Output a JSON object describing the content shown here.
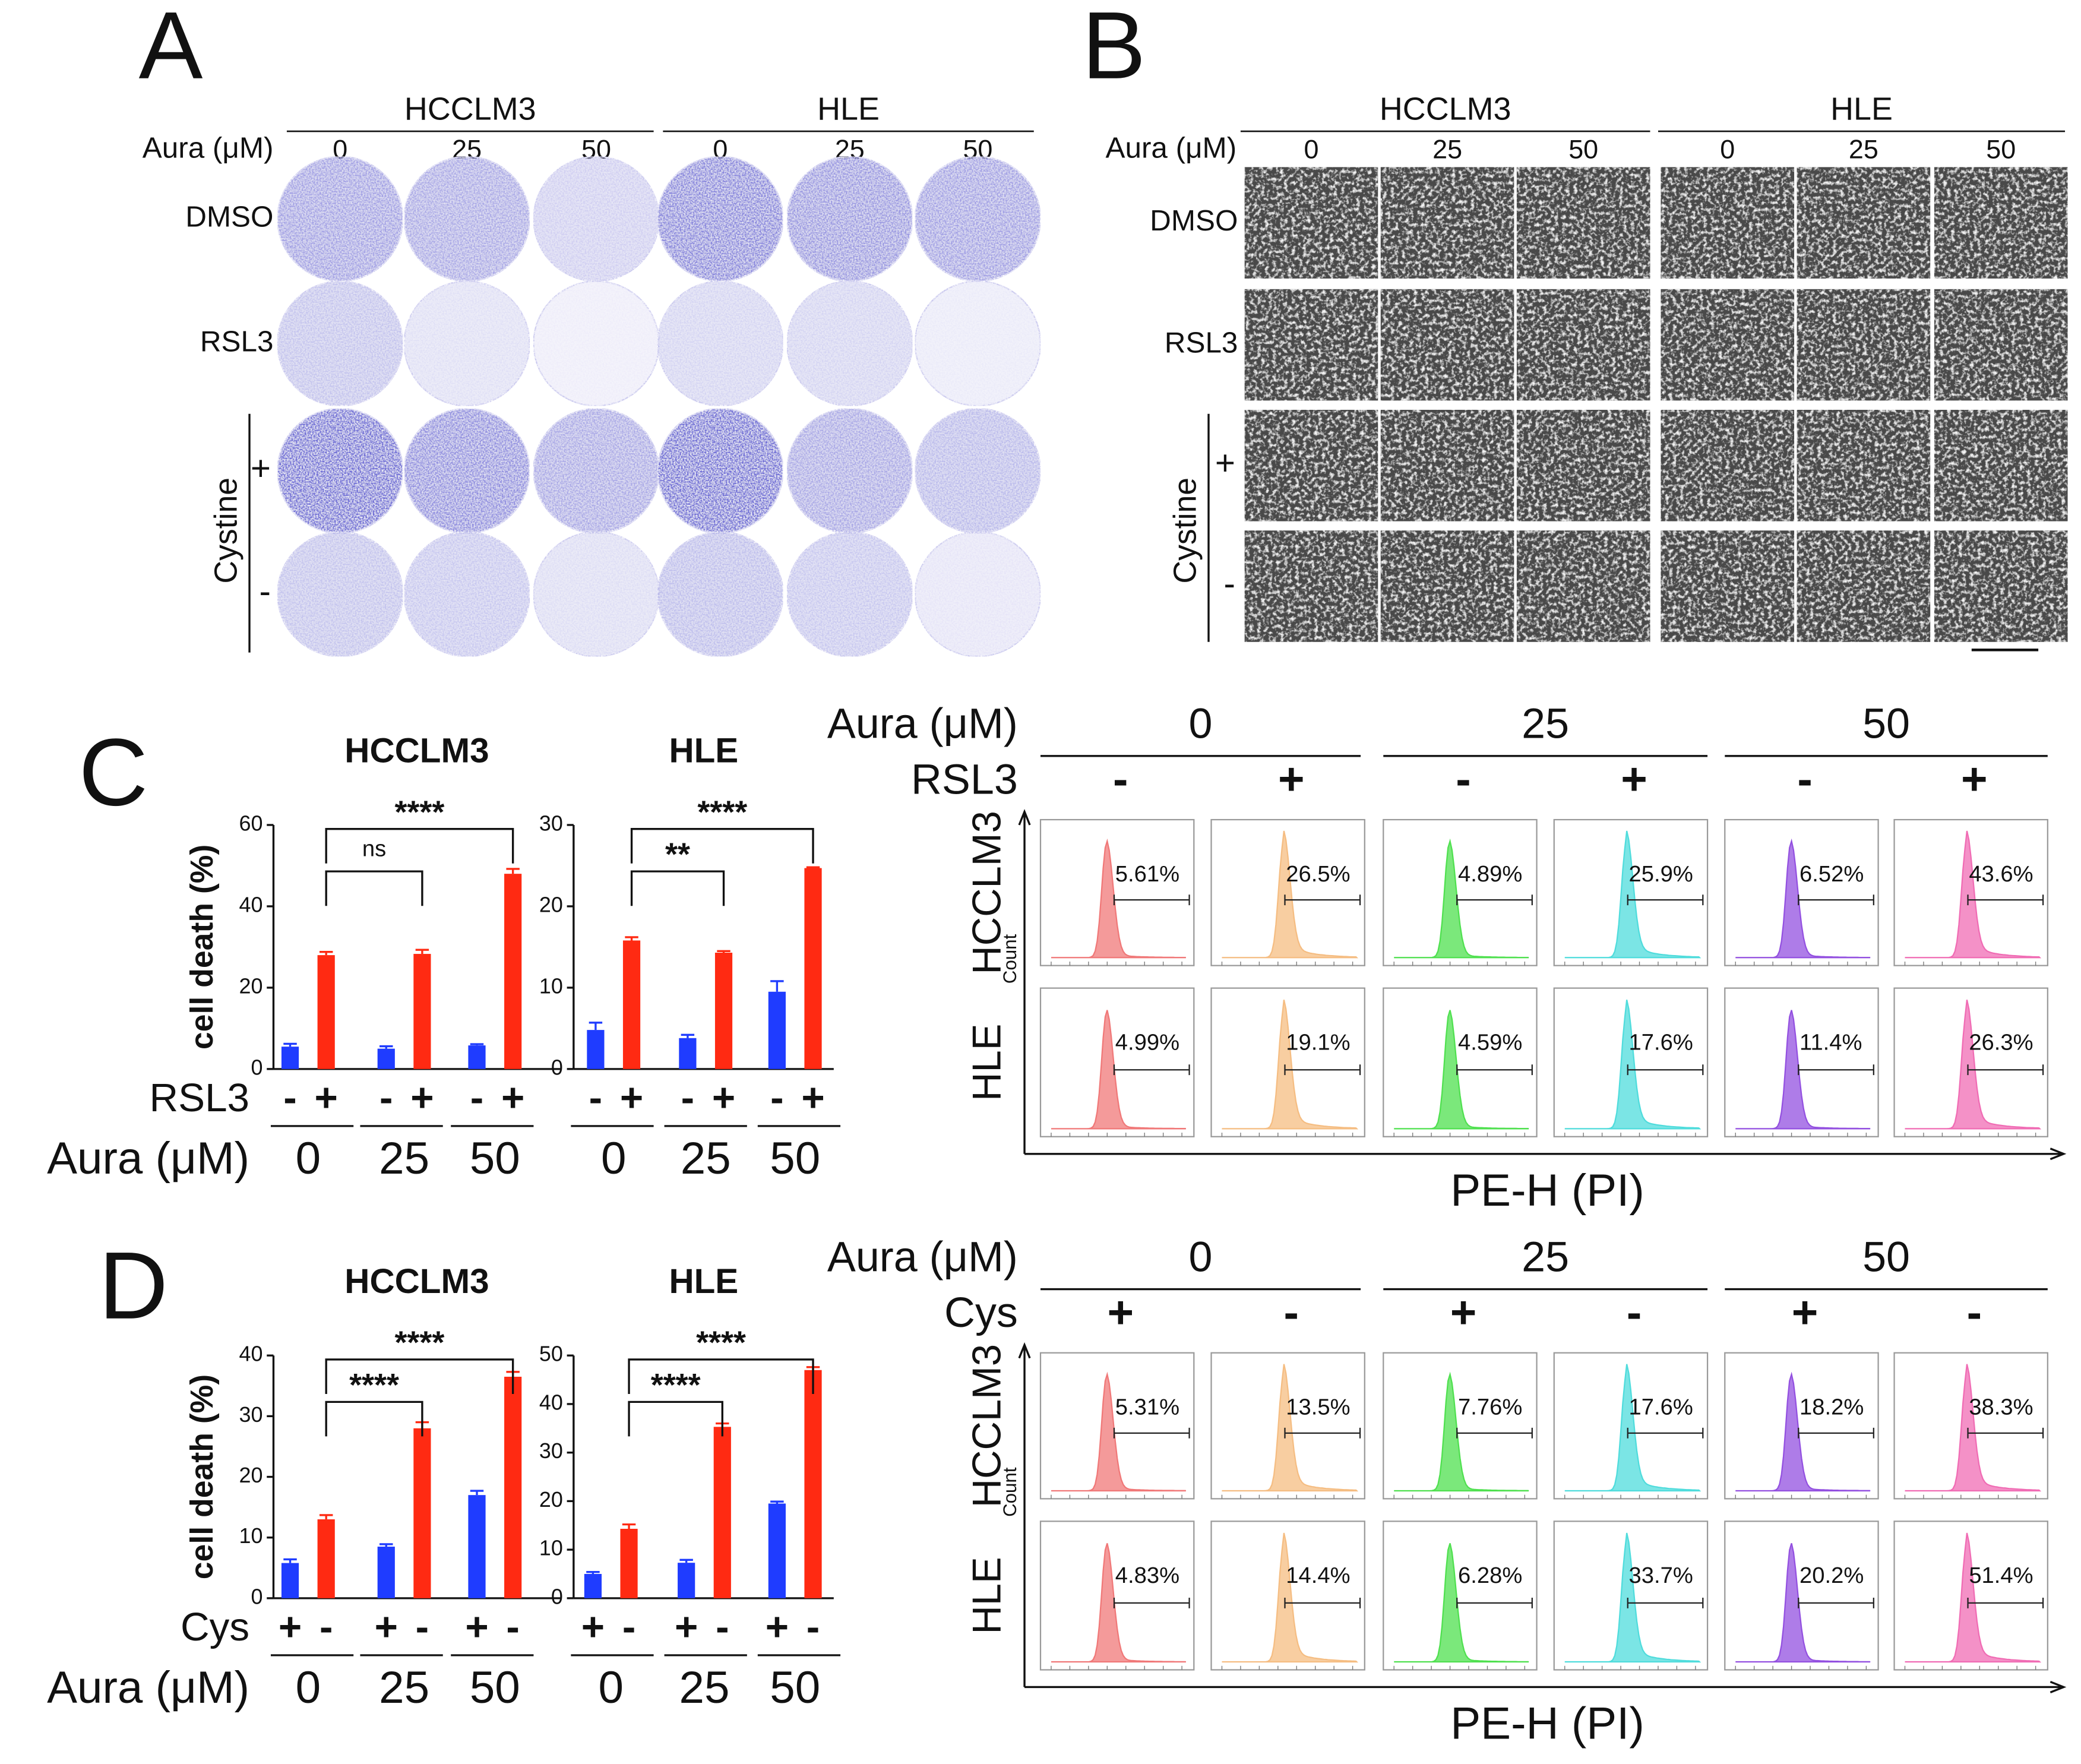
{
  "panel_a": {
    "label": "A",
    "cell_lines": [
      "HCCLM3",
      "HLE"
    ],
    "dose_label": "Aura (μM)",
    "doses": [
      "0",
      "25",
      "50",
      "0",
      "25",
      "50"
    ],
    "rows": [
      "DMSO",
      "RSL3",
      "+",
      "-"
    ],
    "group_label": "Cystine"
  },
  "panel_b": {
    "label": "B",
    "cell_lines": [
      "HCCLM3",
      "HLE"
    ],
    "dose_label": "Aura (μM)",
    "doses": [
      "0",
      "25",
      "50",
      "0",
      "25",
      "50"
    ],
    "rows": [
      "DMSO",
      "RSL3",
      "+",
      "-"
    ],
    "group_label": "Cystine"
  },
  "panel_c": {
    "label": "C",
    "treatment_label": "RSL3",
    "dose_label": "Aura (μM)"
  },
  "panel_d": {
    "label": "D",
    "treatment_label": "Cys",
    "dose_label": "Aura (μM)"
  },
  "chart_data": [
    {
      "type": "bar",
      "title": "HCCLM3",
      "ylabel": "cell death (%)",
      "categories": [
        "0",
        "25",
        "50"
      ],
      "series": [
        {
          "name": "-",
          "color": "#1f3cff",
          "values": [
            5.5,
            5,
            5.8
          ],
          "errors": [
            0.7,
            0.6,
            0.3
          ]
        },
        {
          "name": "+",
          "color": "#ff2a12",
          "values": [
            28,
            28.3,
            48
          ],
          "errors": [
            0.8,
            1,
            1.2
          ]
        }
      ],
      "ylim": [
        0,
        60
      ],
      "yticks": [
        0,
        20,
        40,
        60
      ],
      "comparisons": [
        {
          "label": "ns",
          "between": [
            0,
            1
          ]
        },
        {
          "label": "****",
          "between": [
            0,
            2
          ]
        }
      ]
    },
    {
      "type": "bar",
      "title": "HLE",
      "categories": [
        "0",
        "25",
        "50"
      ],
      "series": [
        {
          "name": "-",
          "color": "#1f3cff",
          "values": [
            4.8,
            3.8,
            9.5
          ],
          "errors": [
            0.9,
            0.4,
            1.3
          ]
        },
        {
          "name": "+",
          "color": "#ff2a12",
          "values": [
            15.8,
            14.3,
            24.7
          ],
          "errors": [
            0.4,
            0.2,
            0.1
          ]
        }
      ],
      "ylim": [
        0,
        30
      ],
      "yticks": [
        0,
        10,
        20,
        30
      ],
      "comparisons": [
        {
          "label": "**",
          "between": [
            0,
            1
          ]
        },
        {
          "label": "****",
          "between": [
            0,
            2
          ]
        }
      ]
    },
    {
      "type": "bar",
      "title": "HCCLM3",
      "ylabel": "cell death (%)",
      "categories": [
        "0",
        "25",
        "50"
      ],
      "series": [
        {
          "name": "+",
          "color": "#1f3cff",
          "values": [
            5.8,
            8.5,
            17
          ],
          "errors": [
            0.6,
            0.4,
            0.7
          ]
        },
        {
          "name": "-",
          "color": "#ff2a12",
          "values": [
            13,
            28,
            36.5
          ],
          "errors": [
            0.7,
            1,
            0.8
          ]
        }
      ],
      "ylim": [
        0,
        40
      ],
      "yticks": [
        0,
        10,
        20,
        30,
        40
      ],
      "comparisons": [
        {
          "label": "****",
          "between": [
            0,
            1
          ]
        },
        {
          "label": "****",
          "between": [
            0,
            2
          ]
        }
      ]
    },
    {
      "type": "bar",
      "title": "HLE",
      "categories": [
        "0",
        "25",
        "50"
      ],
      "series": [
        {
          "name": "+",
          "color": "#1f3cff",
          "values": [
            5,
            7.3,
            19.5
          ],
          "errors": [
            0.4,
            0.6,
            0.4
          ]
        },
        {
          "name": "-",
          "color": "#ff2a12",
          "values": [
            14.3,
            35.3,
            47
          ],
          "errors": [
            0.9,
            0.7,
            0.6
          ]
        }
      ],
      "ylim": [
        0,
        50
      ],
      "yticks": [
        0,
        10,
        20,
        30,
        40,
        50
      ],
      "comparisons": [
        {
          "label": "****",
          "between": [
            0,
            1
          ]
        },
        {
          "label": "****",
          "between": [
            0,
            2
          ]
        }
      ]
    }
  ],
  "flow_c": {
    "dose_label": "Aura (μM)",
    "doses": [
      "0",
      "25",
      "50"
    ],
    "treatment_label": "RSL3",
    "treatments": [
      "-",
      "+",
      "-",
      "+",
      "-",
      "+"
    ],
    "rows": [
      "HCCLM3",
      "HLE"
    ],
    "y_label": "Count",
    "x_label": "PE-H (PI)",
    "colors": [
      "#f07878",
      "#f5bd82",
      "#4fe04f",
      "#4fdcdc",
      "#9350e0",
      "#f06cb4"
    ],
    "percentages": [
      [
        "5.61%",
        "26.5%",
        "4.89%",
        "25.9%",
        "6.52%",
        "43.6%"
      ],
      [
        "4.99%",
        "19.1%",
        "4.59%",
        "17.6%",
        "11.4%",
        "26.3%"
      ]
    ]
  },
  "flow_d": {
    "dose_label": "Aura (μM)",
    "doses": [
      "0",
      "25",
      "50"
    ],
    "treatment_label": "Cys",
    "treatments": [
      "+",
      "-",
      "+",
      "-",
      "+",
      "-"
    ],
    "rows": [
      "HCCLM3",
      "HLE"
    ],
    "y_label": "Count",
    "x_label": "PE-H (PI)",
    "colors": [
      "#f07878",
      "#f5bd82",
      "#4fe04f",
      "#4fdcdc",
      "#9350e0",
      "#f06cb4"
    ],
    "percentages": [
      [
        "5.31%",
        "13.5%",
        "7.76%",
        "17.6%",
        "18.2%",
        "38.3%"
      ],
      [
        "4.83%",
        "14.4%",
        "6.28%",
        "33.7%",
        "20.2%",
        "51.4%"
      ]
    ]
  }
}
